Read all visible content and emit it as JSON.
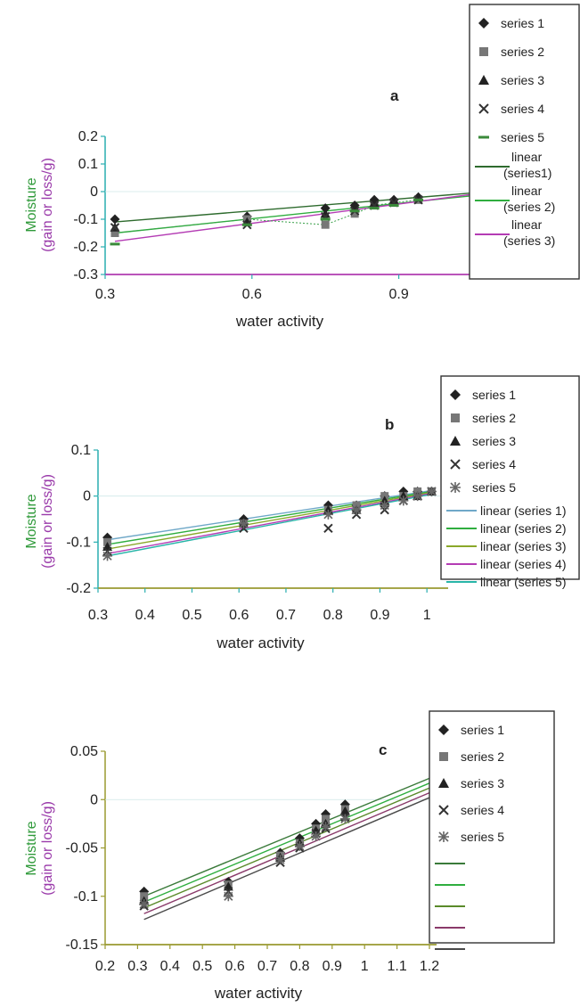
{
  "chart_data": [
    {
      "type": "scatter",
      "panel_label": "a",
      "xlabel": "water activity",
      "ylabel_lines": [
        "Moisture",
        "(gain or loss/g)"
      ],
      "xlim": [
        0.3,
        1.05
      ],
      "ylim": [
        -0.3,
        0.2
      ],
      "xticks": [
        "0.3",
        "0.6",
        "0.9"
      ],
      "xtick_values": [
        0.3,
        0.6,
        0.9
      ],
      "yticks": [
        "0.2",
        "0.1",
        "0",
        "-0.1",
        "-0.2",
        "-0.3"
      ],
      "ytick_values": [
        0.2,
        0.1,
        0,
        -0.1,
        -0.2,
        -0.3
      ],
      "series": [
        {
          "name": "series 1",
          "marker": "diamond",
          "color": "#222222",
          "x": [
            0.32,
            0.59,
            0.75,
            0.81,
            0.85,
            0.89,
            0.94
          ],
          "y": [
            -0.1,
            -0.09,
            -0.06,
            -0.05,
            -0.03,
            -0.03,
            -0.02
          ]
        },
        {
          "name": "series 2",
          "marker": "square",
          "color": "#777777",
          "x": [
            0.32,
            0.59,
            0.75,
            0.81,
            0.85,
            0.89,
            0.94
          ],
          "y": [
            -0.15,
            -0.1,
            -0.12,
            -0.08,
            -0.05,
            -0.04,
            -0.03
          ]
        },
        {
          "name": "series 3",
          "marker": "triangle",
          "color": "#222222",
          "x": [
            0.32,
            0.59,
            0.75,
            0.81,
            0.85,
            0.89,
            0.94
          ],
          "y": [
            -0.13,
            -0.11,
            -0.08,
            -0.06,
            -0.04,
            -0.03,
            -0.02
          ]
        },
        {
          "name": "series 4",
          "marker": "x",
          "color": "#333333",
          "x": [
            0.32,
            0.59,
            0.75,
            0.81,
            0.85,
            0.89,
            0.94
          ],
          "y": [
            -0.13,
            -0.12,
            -0.09,
            -0.07,
            -0.05,
            -0.04,
            -0.03
          ]
        },
        {
          "name": "series 5",
          "marker": "dash",
          "color": "#3a8a3a",
          "x": [
            0.32,
            0.59,
            0.75,
            0.81,
            0.85,
            0.89,
            0.94
          ],
          "y": [
            -0.19,
            -0.12,
            -0.1,
            -0.07,
            -0.06,
            -0.05,
            -0.03
          ]
        }
      ],
      "fits": [
        {
          "name_lines": [
            "linear",
            "(series1)"
          ],
          "color": "#2e6b2e",
          "x": [
            0.32,
            1.05
          ],
          "y": [
            -0.11,
            -0.005
          ]
        },
        {
          "name_lines": [
            "linear",
            "(series 2)"
          ],
          "color": "#2fae3f",
          "x": [
            0.32,
            1.05
          ],
          "y": [
            -0.15,
            -0.015
          ]
        },
        {
          "name_lines": [
            "linear",
            "(series 3)"
          ],
          "color": "#b43cb4",
          "x": [
            0.32,
            1.05
          ],
          "y": [
            -0.18,
            -0.01
          ]
        }
      ],
      "legend_placement": "right"
    },
    {
      "type": "scatter",
      "panel_label": "b",
      "xlabel": "water activity",
      "ylabel_lines": [
        "Moisture",
        "(gain or loss/g)"
      ],
      "xlim": [
        0.3,
        1.03
      ],
      "ylim": [
        -0.2,
        0.1
      ],
      "xticks": [
        "0.3",
        "0.4",
        "0.5",
        "0.6",
        "0.7",
        "0.8",
        "0.9",
        "1"
      ],
      "xtick_values": [
        0.3,
        0.4,
        0.5,
        0.6,
        0.7,
        0.8,
        0.9,
        1.0
      ],
      "yticks": [
        "0.1",
        "0",
        "-0.1",
        "-0.2"
      ],
      "ytick_values": [
        0.1,
        0,
        -0.1,
        -0.2
      ],
      "series": [
        {
          "name": "series 1",
          "marker": "diamond",
          "color": "#222222",
          "x": [
            0.32,
            0.61,
            0.79,
            0.85,
            0.91,
            0.95,
            0.98,
            1.01
          ],
          "y": [
            -0.09,
            -0.05,
            -0.02,
            -0.02,
            0.0,
            0.01,
            0.01,
            0.01
          ]
        },
        {
          "name": "series 2",
          "marker": "square",
          "color": "#777777",
          "x": [
            0.32,
            0.61,
            0.79,
            0.85,
            0.91,
            0.95,
            0.98,
            1.01
          ],
          "y": [
            -0.1,
            -0.06,
            -0.03,
            -0.02,
            0.0,
            0.0,
            0.01,
            0.01
          ]
        },
        {
          "name": "series 3",
          "marker": "triangle",
          "color": "#222222",
          "x": [
            0.32,
            0.61,
            0.79,
            0.85,
            0.91,
            0.95,
            0.98,
            1.01
          ],
          "y": [
            -0.11,
            -0.06,
            -0.03,
            -0.03,
            -0.01,
            0.0,
            0.0,
            0.01
          ]
        },
        {
          "name": "series 4",
          "marker": "x",
          "color": "#333333",
          "x": [
            0.32,
            0.61,
            0.79,
            0.85,
            0.91,
            0.95,
            0.98,
            1.01
          ],
          "y": [
            -0.12,
            -0.07,
            -0.07,
            -0.04,
            -0.03,
            -0.01,
            0.0,
            0.01
          ]
        },
        {
          "name": "series 5",
          "marker": "asterisk",
          "color": "#666666",
          "x": [
            0.32,
            0.61,
            0.79,
            0.85,
            0.91,
            0.95,
            0.98,
            1.01
          ],
          "y": [
            -0.13,
            -0.06,
            -0.04,
            -0.03,
            -0.02,
            -0.01,
            0.0,
            0.01
          ]
        }
      ],
      "fits": [
        {
          "name_lines": [
            "linear (series 1)"
          ],
          "color": "#6fa8c8",
          "x": [
            0.32,
            1.01
          ],
          "y": [
            -0.095,
            0.012
          ]
        },
        {
          "name_lines": [
            "linear (series 2)"
          ],
          "color": "#2fae3f",
          "x": [
            0.32,
            1.01
          ],
          "y": [
            -0.105,
            0.01
          ]
        },
        {
          "name_lines": [
            "linear (series 3)"
          ],
          "color": "#8aa82a",
          "x": [
            0.32,
            1.01
          ],
          "y": [
            -0.115,
            0.008
          ]
        },
        {
          "name_lines": [
            "linear (series 4)"
          ],
          "color": "#b43cb4",
          "x": [
            0.32,
            1.01
          ],
          "y": [
            -0.125,
            0.006
          ]
        },
        {
          "name_lines": [
            "linear (series 5)"
          ],
          "color": "#28b5a8",
          "x": [
            0.32,
            1.01
          ],
          "y": [
            -0.13,
            0.004
          ]
        }
      ],
      "legend_placement": "right"
    },
    {
      "type": "scatter",
      "panel_label": "c",
      "xlabel": "water activity",
      "ylabel_lines": [
        "Moisture",
        "(gain or loss/g)"
      ],
      "xlim": [
        0.2,
        1.2
      ],
      "ylim": [
        -0.15,
        0.05
      ],
      "xticks": [
        "0.2",
        "0.3",
        "0.4",
        "0.5",
        "0.6",
        "0.7",
        "0.8",
        "0.9",
        "1",
        "1.1",
        "1.2"
      ],
      "xtick_values": [
        0.2,
        0.3,
        0.4,
        0.5,
        0.6,
        0.7,
        0.8,
        0.9,
        1.0,
        1.1,
        1.2
      ],
      "yticks": [
        "0.05",
        "0",
        "-0.05",
        "-0.1",
        "-0.15"
      ],
      "ytick_values": [
        0.05,
        0,
        -0.05,
        -0.1,
        -0.15
      ],
      "series": [
        {
          "name": "series 1",
          "marker": "diamond",
          "color": "#222222",
          "x": [
            0.32,
            0.58,
            0.74,
            0.8,
            0.85,
            0.88,
            0.94
          ],
          "y": [
            -0.095,
            -0.085,
            -0.055,
            -0.04,
            -0.025,
            -0.015,
            -0.005
          ]
        },
        {
          "name": "series 2",
          "marker": "square",
          "color": "#777777",
          "x": [
            0.32,
            0.58,
            0.74,
            0.8,
            0.85,
            0.88,
            0.94
          ],
          "y": [
            -0.1,
            -0.088,
            -0.058,
            -0.045,
            -0.03,
            -0.02,
            -0.01
          ]
        },
        {
          "name": "series 3",
          "marker": "triangle",
          "color": "#222222",
          "x": [
            0.32,
            0.58,
            0.74,
            0.8,
            0.85,
            0.88,
            0.94
          ],
          "y": [
            -0.105,
            -0.09,
            -0.06,
            -0.045,
            -0.032,
            -0.025,
            -0.012
          ]
        },
        {
          "name": "series 4",
          "marker": "x",
          "color": "#333333",
          "x": [
            0.32,
            0.58,
            0.74,
            0.8,
            0.85,
            0.88,
            0.94
          ],
          "y": [
            -0.11,
            -0.095,
            -0.065,
            -0.05,
            -0.035,
            -0.03,
            -0.018
          ]
        },
        {
          "name": "series 5",
          "marker": "asterisk",
          "color": "#666666",
          "x": [
            0.32,
            0.58,
            0.74,
            0.8,
            0.85,
            0.88,
            0.94
          ],
          "y": [
            -0.108,
            -0.1,
            -0.062,
            -0.048,
            -0.038,
            -0.028,
            -0.02
          ]
        }
      ],
      "fits": [
        {
          "name_lines": [
            ""
          ],
          "color": "#3a7a3a",
          "x": [
            0.32,
            1.2
          ],
          "y": [
            -0.1,
            0.022
          ]
        },
        {
          "name_lines": [
            ""
          ],
          "color": "#2fae3f",
          "x": [
            0.32,
            1.2
          ],
          "y": [
            -0.106,
            0.017
          ]
        },
        {
          "name_lines": [
            ""
          ],
          "color": "#5a8a2a",
          "x": [
            0.32,
            1.2
          ],
          "y": [
            -0.112,
            0.012
          ]
        },
        {
          "name_lines": [
            ""
          ],
          "color": "#8a3a6a",
          "x": [
            0.32,
            1.2
          ],
          "y": [
            -0.118,
            0.007
          ]
        },
        {
          "name_lines": [
            ""
          ],
          "color": "#4a4a4a",
          "x": [
            0.32,
            1.2
          ],
          "y": [
            -0.124,
            0.002
          ]
        }
      ],
      "legend_placement": "right"
    }
  ],
  "colors": {
    "axis_teal": "#2aaeb0",
    "axis_olive": "#9a9a30",
    "axis_purple": "#b03cb0",
    "ylabel_green": "#2f9a3a",
    "ylabel_purple": "#9a3aaa",
    "legend_border": "#333333"
  }
}
